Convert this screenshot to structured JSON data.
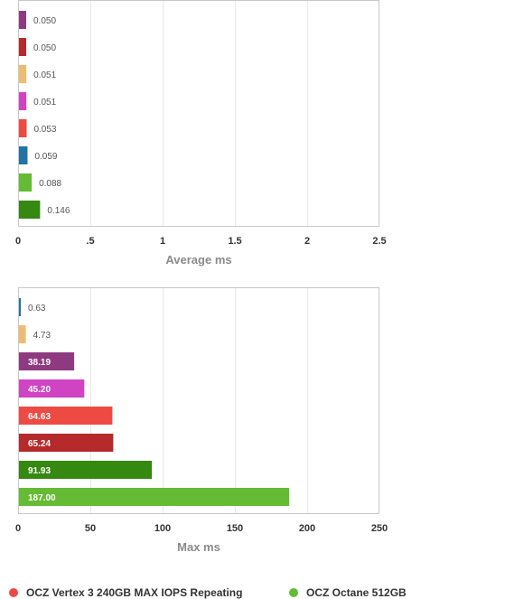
{
  "chart_data": [
    {
      "type": "bar",
      "orientation": "horizontal",
      "xlabel": "Average ms",
      "xlim": [
        0,
        2.5
      ],
      "ticks": [
        "0",
        ".5",
        "1",
        "1.5",
        "2",
        "2.5"
      ],
      "tick_values": [
        0,
        0.5,
        1,
        1.5,
        2,
        2.5
      ],
      "grid": true,
      "bars": [
        {
          "value": 0.05,
          "label": "0.050",
          "color": "#8e3a80"
        },
        {
          "value": 0.05,
          "label": "0.050",
          "color": "#b52a2a"
        },
        {
          "value": 0.051,
          "label": "0.051",
          "color": "#efbb72"
        },
        {
          "value": 0.051,
          "label": "0.051",
          "color": "#d043c3"
        },
        {
          "value": 0.053,
          "label": "0.053",
          "color": "#ee4a44"
        },
        {
          "value": 0.059,
          "label": "0.059",
          "color": "#2174a4"
        },
        {
          "value": 0.088,
          "label": "0.088",
          "color": "#66bb35"
        },
        {
          "value": 0.146,
          "label": "0.146",
          "color": "#358810"
        }
      ]
    },
    {
      "type": "bar",
      "orientation": "horizontal",
      "xlabel": "Max ms",
      "xlim": [
        0,
        250
      ],
      "ticks": [
        "0",
        "50",
        "100",
        "150",
        "200",
        "250"
      ],
      "tick_values": [
        0,
        50,
        100,
        150,
        200,
        250
      ],
      "grid": true,
      "bars": [
        {
          "value": 0.63,
          "label": "0.63",
          "color": "#2174a4"
        },
        {
          "value": 4.73,
          "label": "4.73",
          "color": "#efbb72"
        },
        {
          "value": 38.19,
          "label": "38.19",
          "color": "#8e3a80"
        },
        {
          "value": 45.2,
          "label": "45.20",
          "color": "#d043c3"
        },
        {
          "value": 64.63,
          "label": "64.63",
          "color": "#ee4a44"
        },
        {
          "value": 65.24,
          "label": "65.24",
          "color": "#b52a2a"
        },
        {
          "value": 91.93,
          "label": "91.93",
          "color": "#358810"
        },
        {
          "value": 187.0,
          "label": "187.00",
          "color": "#66bb35"
        }
      ]
    }
  ],
  "legend": [
    {
      "name": "OCZ Vertex 3 240GB MAX IOPS Repeating",
      "color": "#ee4a44"
    },
    {
      "name": "OCZ Octane 512GB",
      "color": "#66bb35"
    }
  ]
}
